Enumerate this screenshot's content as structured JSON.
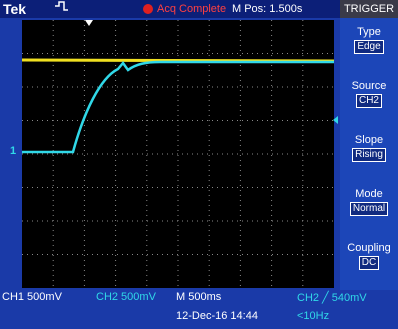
{
  "header": {
    "brand": "Tek",
    "status": "Acq Complete",
    "position": "M Pos: 1.500s"
  },
  "menu": {
    "title": "TRIGGER",
    "items": [
      {
        "label": "Type",
        "value": "Edge"
      },
      {
        "label": "Source",
        "value": "CH2"
      },
      {
        "label": "Slope",
        "value": "Rising"
      },
      {
        "label": "Mode",
        "value": "Normal"
      },
      {
        "label": "Coupling",
        "value": "DC"
      }
    ]
  },
  "graticule": {
    "channel_marker": "1"
  },
  "footer": {
    "ch1": "CH1 500mV",
    "ch2": "CH2 500mV",
    "timebase": "M 500ms",
    "trigger": "CH2 ╱ 540mV",
    "datetime": "12-Dec-16 14:44",
    "frequency": "<10Hz"
  }
}
